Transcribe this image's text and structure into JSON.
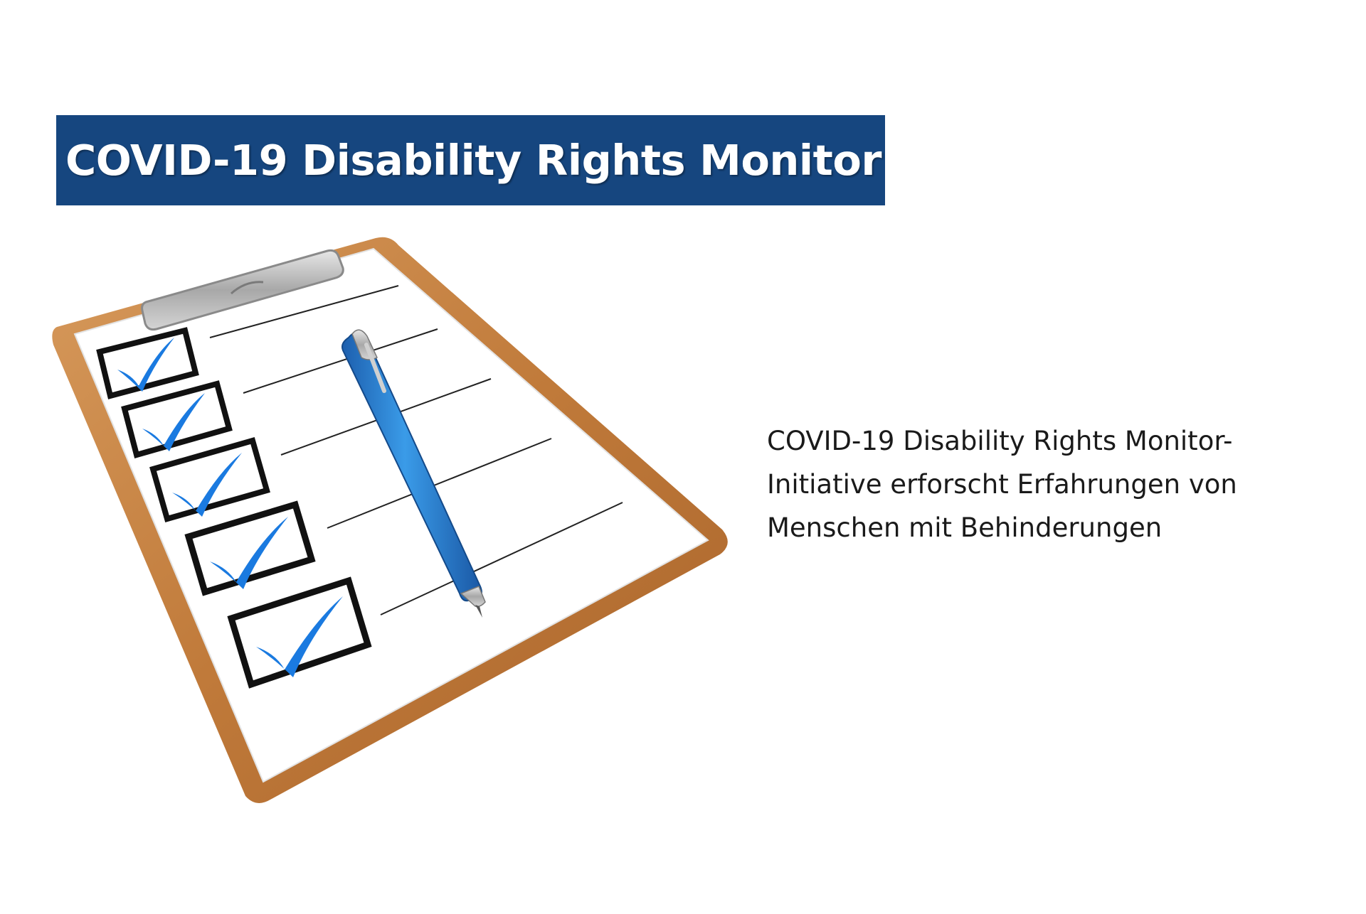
{
  "banner": {
    "title": "COVID-19 Disability Rights Monitor",
    "background_color": "#16467f",
    "text_color": "#ffffff"
  },
  "illustration": {
    "icon": "clipboard-checklist-icon",
    "checked_items": 5,
    "pen_color": "#2a86d8",
    "check_color": "#1a7ae0",
    "board_color": "#c07a3a"
  },
  "caption": {
    "lines": [
      "COVID-19 Disability Rights Monitor-",
      "Initiative erforscht Erfahrungen von",
      "Menschen mit Behinderungen"
    ],
    "text_color": "#1a1a1a"
  }
}
